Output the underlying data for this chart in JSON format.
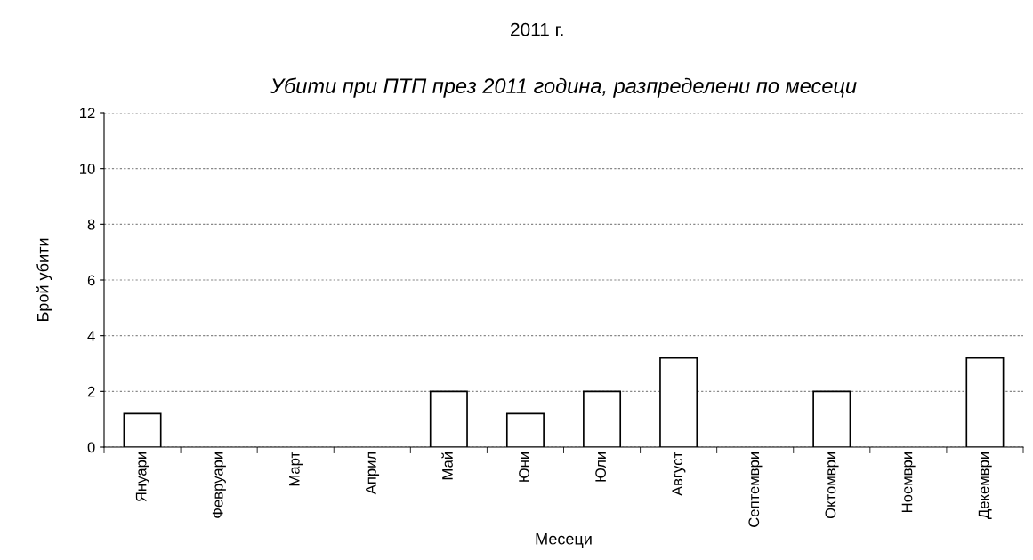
{
  "chart_data": {
    "type": "bar",
    "subtitle": "2011 г.",
    "title": "Убити при ПТП през 2011 година, разпределени по месеци",
    "xlabel": "Месеци",
    "ylabel": "Брой убити",
    "categories": [
      "Януари",
      "Февруари",
      "Март",
      "Април",
      "Май",
      "Юни",
      "Юли",
      "Август",
      "Септември",
      "Октомври",
      "Ноември",
      "Декември"
    ],
    "values": [
      1.2,
      0,
      0,
      0,
      2,
      1.2,
      2,
      3.2,
      0,
      2,
      0,
      3.2
    ],
    "color": "#ffffff",
    "ylim": [
      0,
      12
    ],
    "yticks": [
      0,
      2,
      4,
      6,
      8,
      10,
      12
    ],
    "grid": "y",
    "legend": false
  }
}
